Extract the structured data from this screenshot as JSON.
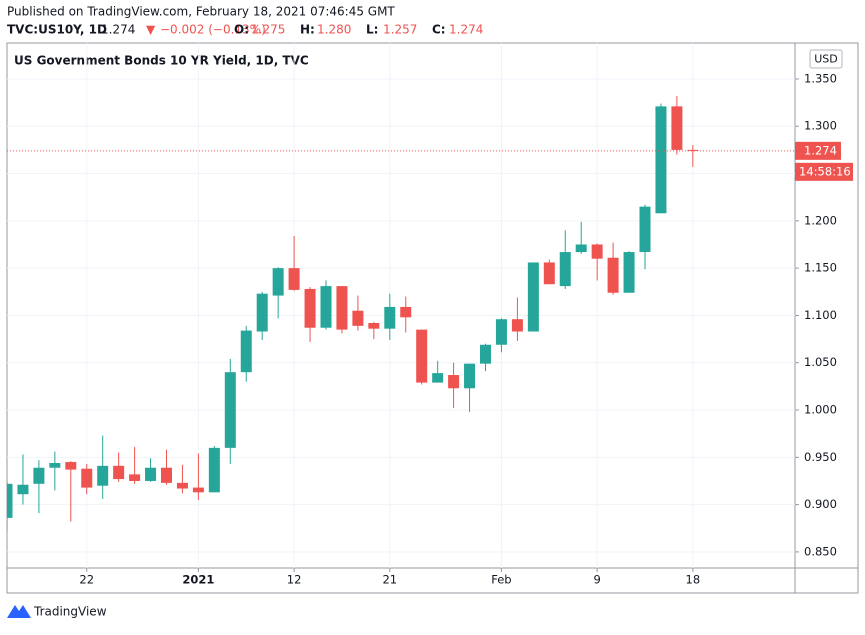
{
  "header": {
    "published": "Published on TradingView.com, February 18, 2021 07:46:45 GMT",
    "symbol": "TVC:US10Y, 1D",
    "last": "1.274",
    "arrow": "▼",
    "change": "−0.002 (−0.13%)",
    "ohlc": [
      {
        "label": "O:",
        "value": "1.275"
      },
      {
        "label": "H:",
        "value": "1.280"
      },
      {
        "label": "L:",
        "value": "1.257"
      },
      {
        "label": "C:",
        "value": "1.274"
      }
    ]
  },
  "chart_data": {
    "type": "candlestick",
    "title": "US Government Bonds 10 YR Yield, 1D, TVC",
    "currency": "USD",
    "categories": [
      null,
      null,
      null,
      null,
      null,
      "22",
      null,
      null,
      null,
      null,
      null,
      null,
      "2021",
      null,
      null,
      null,
      null,
      null,
      "12",
      null,
      null,
      null,
      null,
      null,
      "21",
      null,
      null,
      null,
      null,
      null,
      null,
      "Feb",
      null,
      null,
      null,
      null,
      null,
      "9",
      null,
      null,
      null,
      null,
      null,
      "18"
    ],
    "open": [
      0.886,
      0.911,
      0.922,
      0.939,
      0.945,
      0.938,
      0.92,
      0.941,
      0.932,
      0.925,
      0.939,
      0.923,
      0.918,
      0.913,
      0.96,
      1.04,
      1.083,
      1.121,
      1.15,
      1.128,
      1.087,
      1.131,
      1.105,
      1.092,
      1.086,
      1.109,
      1.085,
      1.029,
      1.037,
      1.023,
      1.049,
      1.069,
      1.096,
      1.083,
      1.156,
      1.131,
      1.167,
      1.175,
      1.161,
      1.124,
      1.167,
      1.208,
      1.321,
      1.275
    ],
    "high": [
      0.925,
      0.953,
      0.947,
      0.956,
      0.946,
      0.943,
      0.973,
      0.955,
      0.961,
      0.949,
      0.958,
      0.942,
      0.954,
      0.962,
      1.054,
      1.089,
      1.125,
      1.151,
      1.184,
      1.13,
      1.137,
      1.131,
      1.121,
      1.093,
      1.123,
      1.12,
      1.085,
      1.052,
      1.05,
      1.049,
      1.07,
      1.097,
      1.119,
      1.156,
      1.159,
      1.19,
      1.199,
      1.176,
      1.177,
      1.168,
      1.217,
      1.324,
      1.332,
      1.28
    ],
    "low": [
      0.872,
      0.9,
      0.891,
      0.915,
      0.882,
      0.911,
      0.906,
      0.924,
      0.922,
      0.924,
      0.921,
      0.912,
      0.905,
      0.913,
      0.943,
      1.03,
      1.074,
      1.097,
      1.126,
      1.072,
      1.085,
      1.081,
      1.084,
      1.075,
      1.074,
      1.082,
      1.027,
      1.029,
      1.002,
      0.998,
      1.041,
      1.061,
      1.073,
      1.083,
      1.133,
      1.128,
      1.165,
      1.137,
      1.122,
      1.124,
      1.149,
      1.208,
      1.27,
      1.257
    ],
    "close": [
      0.922,
      0.921,
      0.939,
      0.944,
      0.937,
      0.918,
      0.941,
      0.927,
      0.925,
      0.939,
      0.923,
      0.917,
      0.913,
      0.96,
      1.04,
      1.084,
      1.123,
      1.15,
      1.127,
      1.087,
      1.131,
      1.085,
      1.089,
      1.086,
      1.109,
      1.098,
      1.029,
      1.039,
      1.023,
      1.049,
      1.069,
      1.096,
      1.083,
      1.156,
      1.133,
      1.167,
      1.175,
      1.16,
      1.124,
      1.167,
      1.215,
      1.321,
      1.275,
      1.274
    ],
    "up_color": "#26a69a",
    "down_color": "#ef5350",
    "ylim": [
      0.833,
      1.388
    ],
    "yticks": [
      {
        "value": 0.85,
        "label": "0.850"
      },
      {
        "value": 0.9,
        "label": "0.900"
      },
      {
        "value": 0.95,
        "label": "0.950"
      },
      {
        "value": 1.0,
        "label": "1.000"
      },
      {
        "value": 1.05,
        "label": "1.050"
      },
      {
        "value": 1.1,
        "label": "1.100"
      },
      {
        "value": 1.15,
        "label": "1.150"
      },
      {
        "value": 1.2,
        "label": "1.200"
      },
      {
        "value": 1.25,
        "label": "1.250"
      },
      {
        "value": 1.3,
        "label": "1.300"
      },
      {
        "value": 1.35,
        "label": "1.350"
      }
    ],
    "last_label": "1.274",
    "countdown": "14:58:16",
    "grid": true
  },
  "footer": {
    "brand": "TradingView"
  }
}
